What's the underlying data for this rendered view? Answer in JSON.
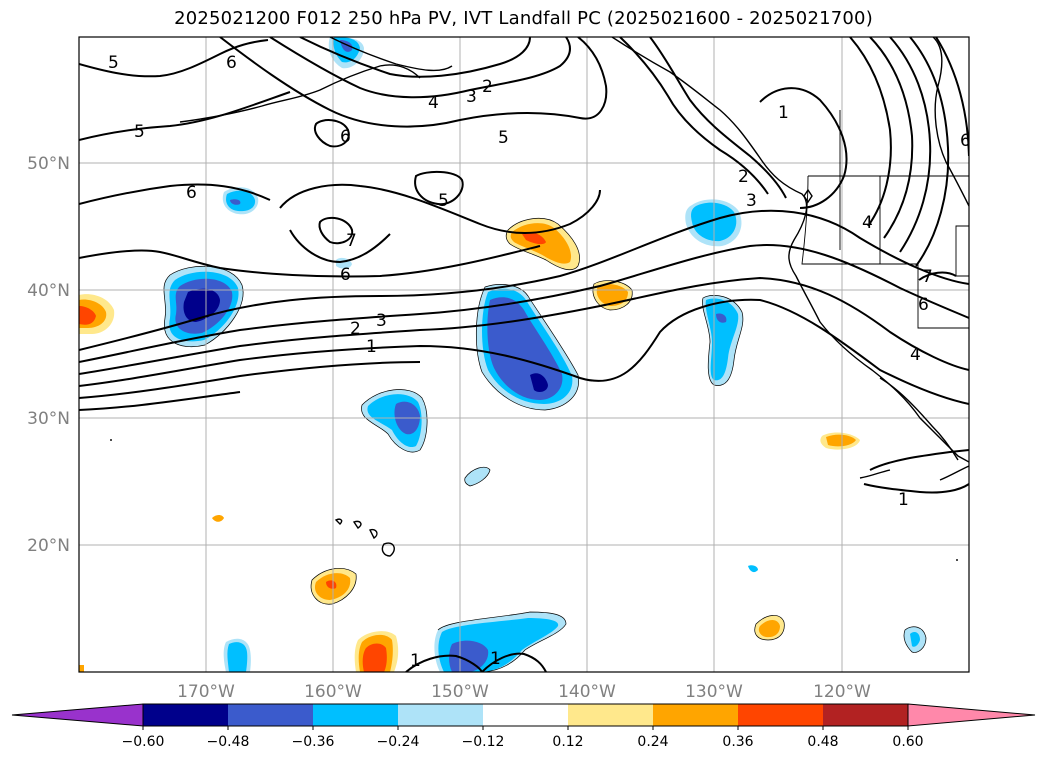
{
  "title": "2025021200 F012 250 hPa PV, IVT Landfall PC (2025021600 - 2025021700)",
  "lat_ticks": [
    "50°N",
    "40°N",
    "30°N",
    "20°N"
  ],
  "lon_ticks": [
    "170°W",
    "160°W",
    "150°W",
    "140°W",
    "130°W",
    "120°W"
  ],
  "colorbar": {
    "colors": [
      "#9932cc",
      "#00008b",
      "#3b5bcc",
      "#00bfff",
      "#aee3f8",
      "#ffffff",
      "#ffe88c",
      "#ffa500",
      "#ff4500",
      "#b22222",
      "#ff88aa"
    ],
    "ticks": [
      "−0.60",
      "−0.48",
      "−0.36",
      "−0.24",
      "−0.12",
      "0.12",
      "0.24",
      "0.36",
      "0.48",
      "0.60"
    ]
  },
  "pv_contour_labels": [
    "1",
    "2",
    "3",
    "4",
    "5",
    "6",
    "7",
    "6",
    "5",
    "6",
    "5",
    "6",
    "5",
    "4",
    "3",
    "2",
    "1",
    "2",
    "3",
    "6",
    "4",
    "1",
    "1",
    "1",
    "7",
    "6"
  ]
}
